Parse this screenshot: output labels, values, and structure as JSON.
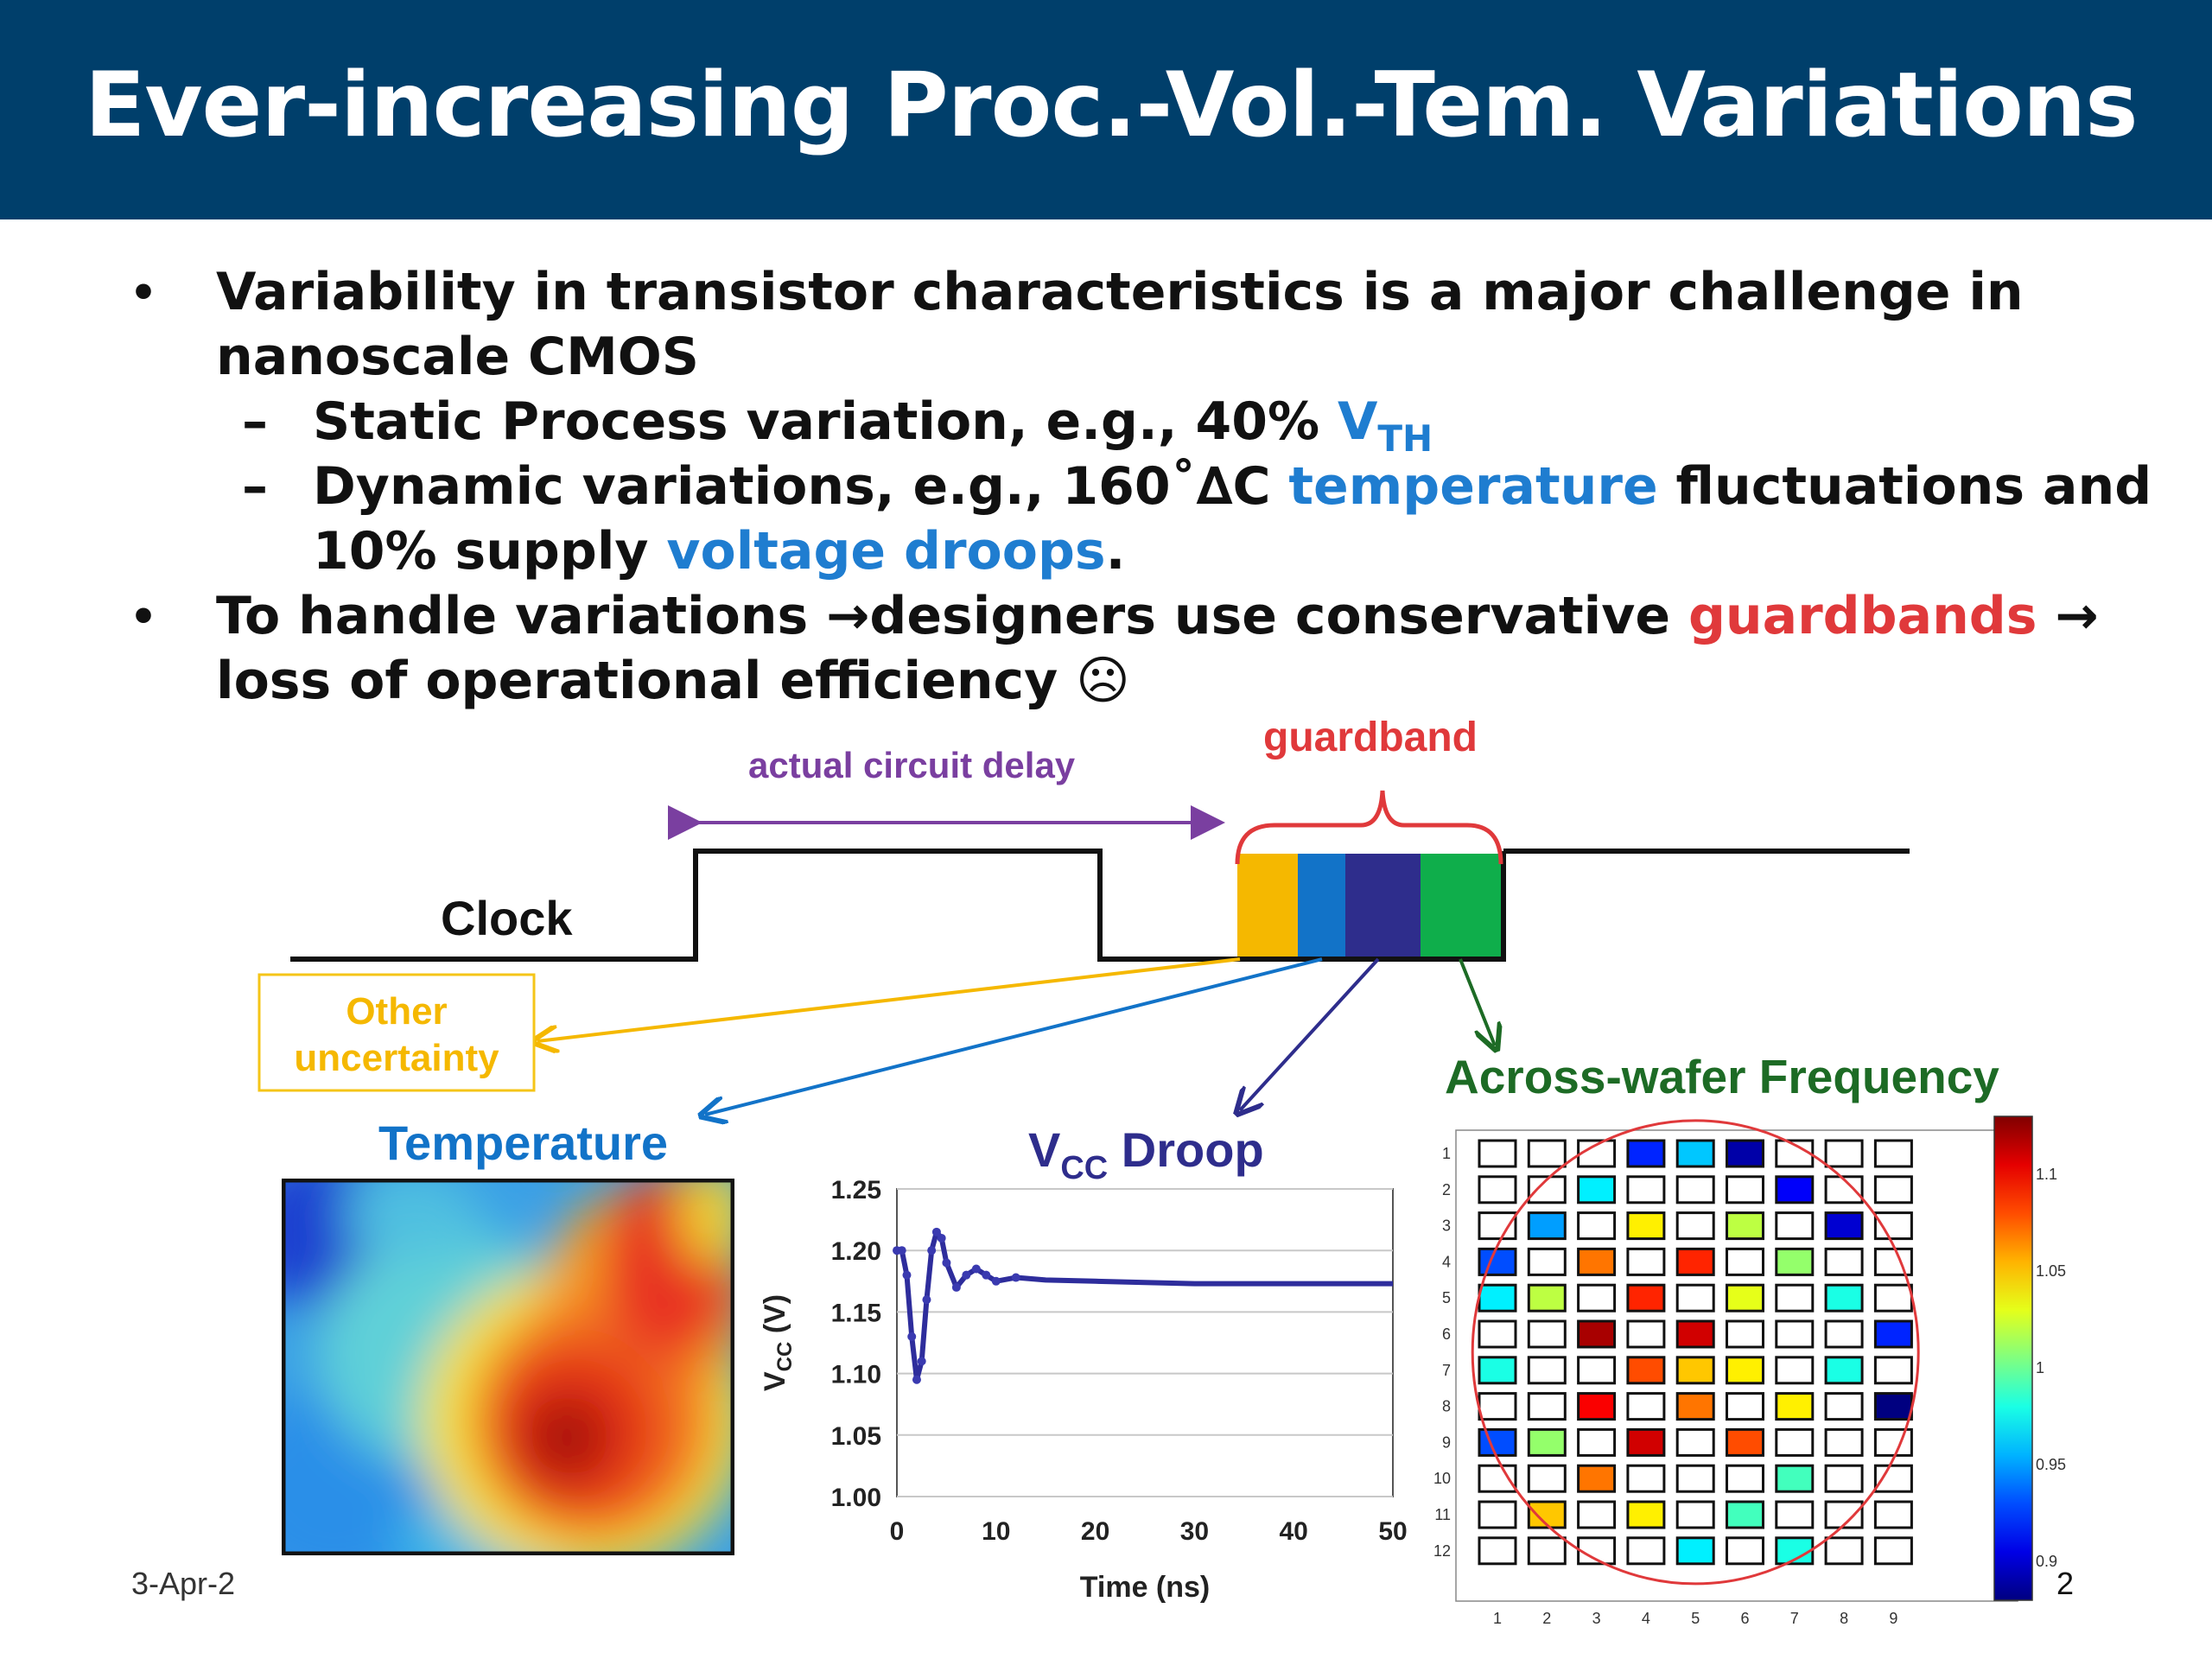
{
  "slide": {
    "title": "Ever-increasing Proc.-Vol.-Tem. Variations",
    "bullets": [
      {
        "lines": [
          "Variability in transistor characteristics is a major challenge in",
          "nanoscale CMOS"
        ]
      },
      {
        "sub1_text": "Static Process variation, e.g., 40% ",
        "sub1_hl": "V",
        "sub1_hl_sub": "TH"
      },
      {
        "sub2_a": "Dynamic variations, e.g., 160˚∆C ",
        "sub2_hl1": "temperature",
        "sub2_b": " fluctuations and",
        "sub2_c": "10% supply ",
        "sub2_hl2": "voltage droops",
        "sub2_d": "."
      },
      {
        "b2_a": "To handle variations ",
        "b2_arrow": "→",
        "b2_b": "designers use conservative ",
        "b2_hl": "guardbands",
        "b2_c": " →",
        "b2_line2": "loss of operational efficiency ☹"
      }
    ],
    "date": "3-Apr-2",
    "page_number": "2"
  },
  "diagram": {
    "clock_label": "Clock",
    "delay_label": "actual circuit delay",
    "guardband_label": "guardband",
    "other_label_1": "Other",
    "other_label_2": "uncertainty",
    "temperature_label": "Temperature",
    "vcc_label_v": "V",
    "vcc_label_sub": "CC",
    "vcc_label_rest": " Droop",
    "wafer_label": "Across-wafer Frequency",
    "colors": {
      "orange": "#f5b800",
      "blue": "#1273c8",
      "navy": "#2e2d8c",
      "green": "#0fae4b",
      "purple": "#7a3fa0",
      "red": "#e0393b",
      "darkgreen": "#1d6b25"
    }
  },
  "chart_data": [
    {
      "type": "line",
      "xlabel": "Time (ns)",
      "ylabel": "VCC (V)",
      "xlim": [
        0,
        50
      ],
      "ylim": [
        1.0,
        1.25
      ],
      "x_ticks": [
        "0",
        "10",
        "20",
        "30",
        "40",
        "50"
      ],
      "y_ticks": [
        "1.25",
        "1.20",
        "1.15",
        "1.10",
        "1.05",
        "1.00"
      ],
      "grid": true,
      "series": [
        {
          "x": [
            0,
            0.5,
            1,
            1.5,
            2,
            2.5,
            3,
            3.5,
            4,
            4.5,
            5,
            6,
            7,
            8,
            9,
            10,
            12,
            15,
            20,
            25,
            30,
            40,
            50
          ],
          "values": [
            1.2,
            1.2,
            1.18,
            1.13,
            1.095,
            1.11,
            1.16,
            1.2,
            1.215,
            1.21,
            1.19,
            1.17,
            1.18,
            1.185,
            1.18,
            1.175,
            1.178,
            1.176,
            1.175,
            1.174,
            1.173,
            1.173,
            1.173
          ]
        }
      ]
    },
    {
      "type": "heatmap",
      "xlabel": "",
      "ylabel": "",
      "x_ticks": [
        "1",
        "2",
        "3",
        "4",
        "5",
        "6",
        "7",
        "8",
        "9"
      ],
      "y_ticks": [
        "1",
        "2",
        "3",
        "4",
        "5",
        "6",
        "7",
        "8",
        "9",
        "10",
        "11",
        "12"
      ],
      "colorbar_ticks": [
        "1.1",
        "1.05",
        "1",
        "0.95",
        "0.9"
      ],
      "colorbar_range": [
        0.88,
        1.13
      ],
      "cells": [
        [
          null,
          null,
          null,
          0.92,
          0.96,
          0.89,
          null,
          null,
          null
        ],
        [
          null,
          null,
          0.97,
          null,
          null,
          null,
          0.91,
          null,
          null
        ],
        [
          null,
          0.95,
          null,
          1.04,
          null,
          1.02,
          null,
          0.9,
          null
        ],
        [
          0.93,
          null,
          1.07,
          null,
          1.09,
          null,
          1.01,
          null,
          null
        ],
        [
          0.97,
          1.02,
          null,
          1.09,
          null,
          1.03,
          null,
          0.98,
          null
        ],
        [
          null,
          null,
          1.12,
          null,
          1.11,
          null,
          null,
          null,
          0.92
        ],
        [
          0.98,
          null,
          null,
          1.08,
          1.05,
          1.04,
          null,
          0.98,
          null
        ],
        [
          null,
          null,
          1.1,
          null,
          1.07,
          null,
          1.04,
          null,
          0.88
        ],
        [
          0.93,
          1.01,
          null,
          1.11,
          null,
          1.08,
          null,
          null,
          null
        ],
        [
          null,
          null,
          1.07,
          null,
          null,
          null,
          0.99,
          null,
          null
        ],
        [
          null,
          1.05,
          null,
          1.04,
          null,
          0.99,
          null,
          null,
          null
        ],
        [
          null,
          null,
          null,
          null,
          0.97,
          null,
          0.98,
          null,
          null
        ]
      ]
    }
  ]
}
